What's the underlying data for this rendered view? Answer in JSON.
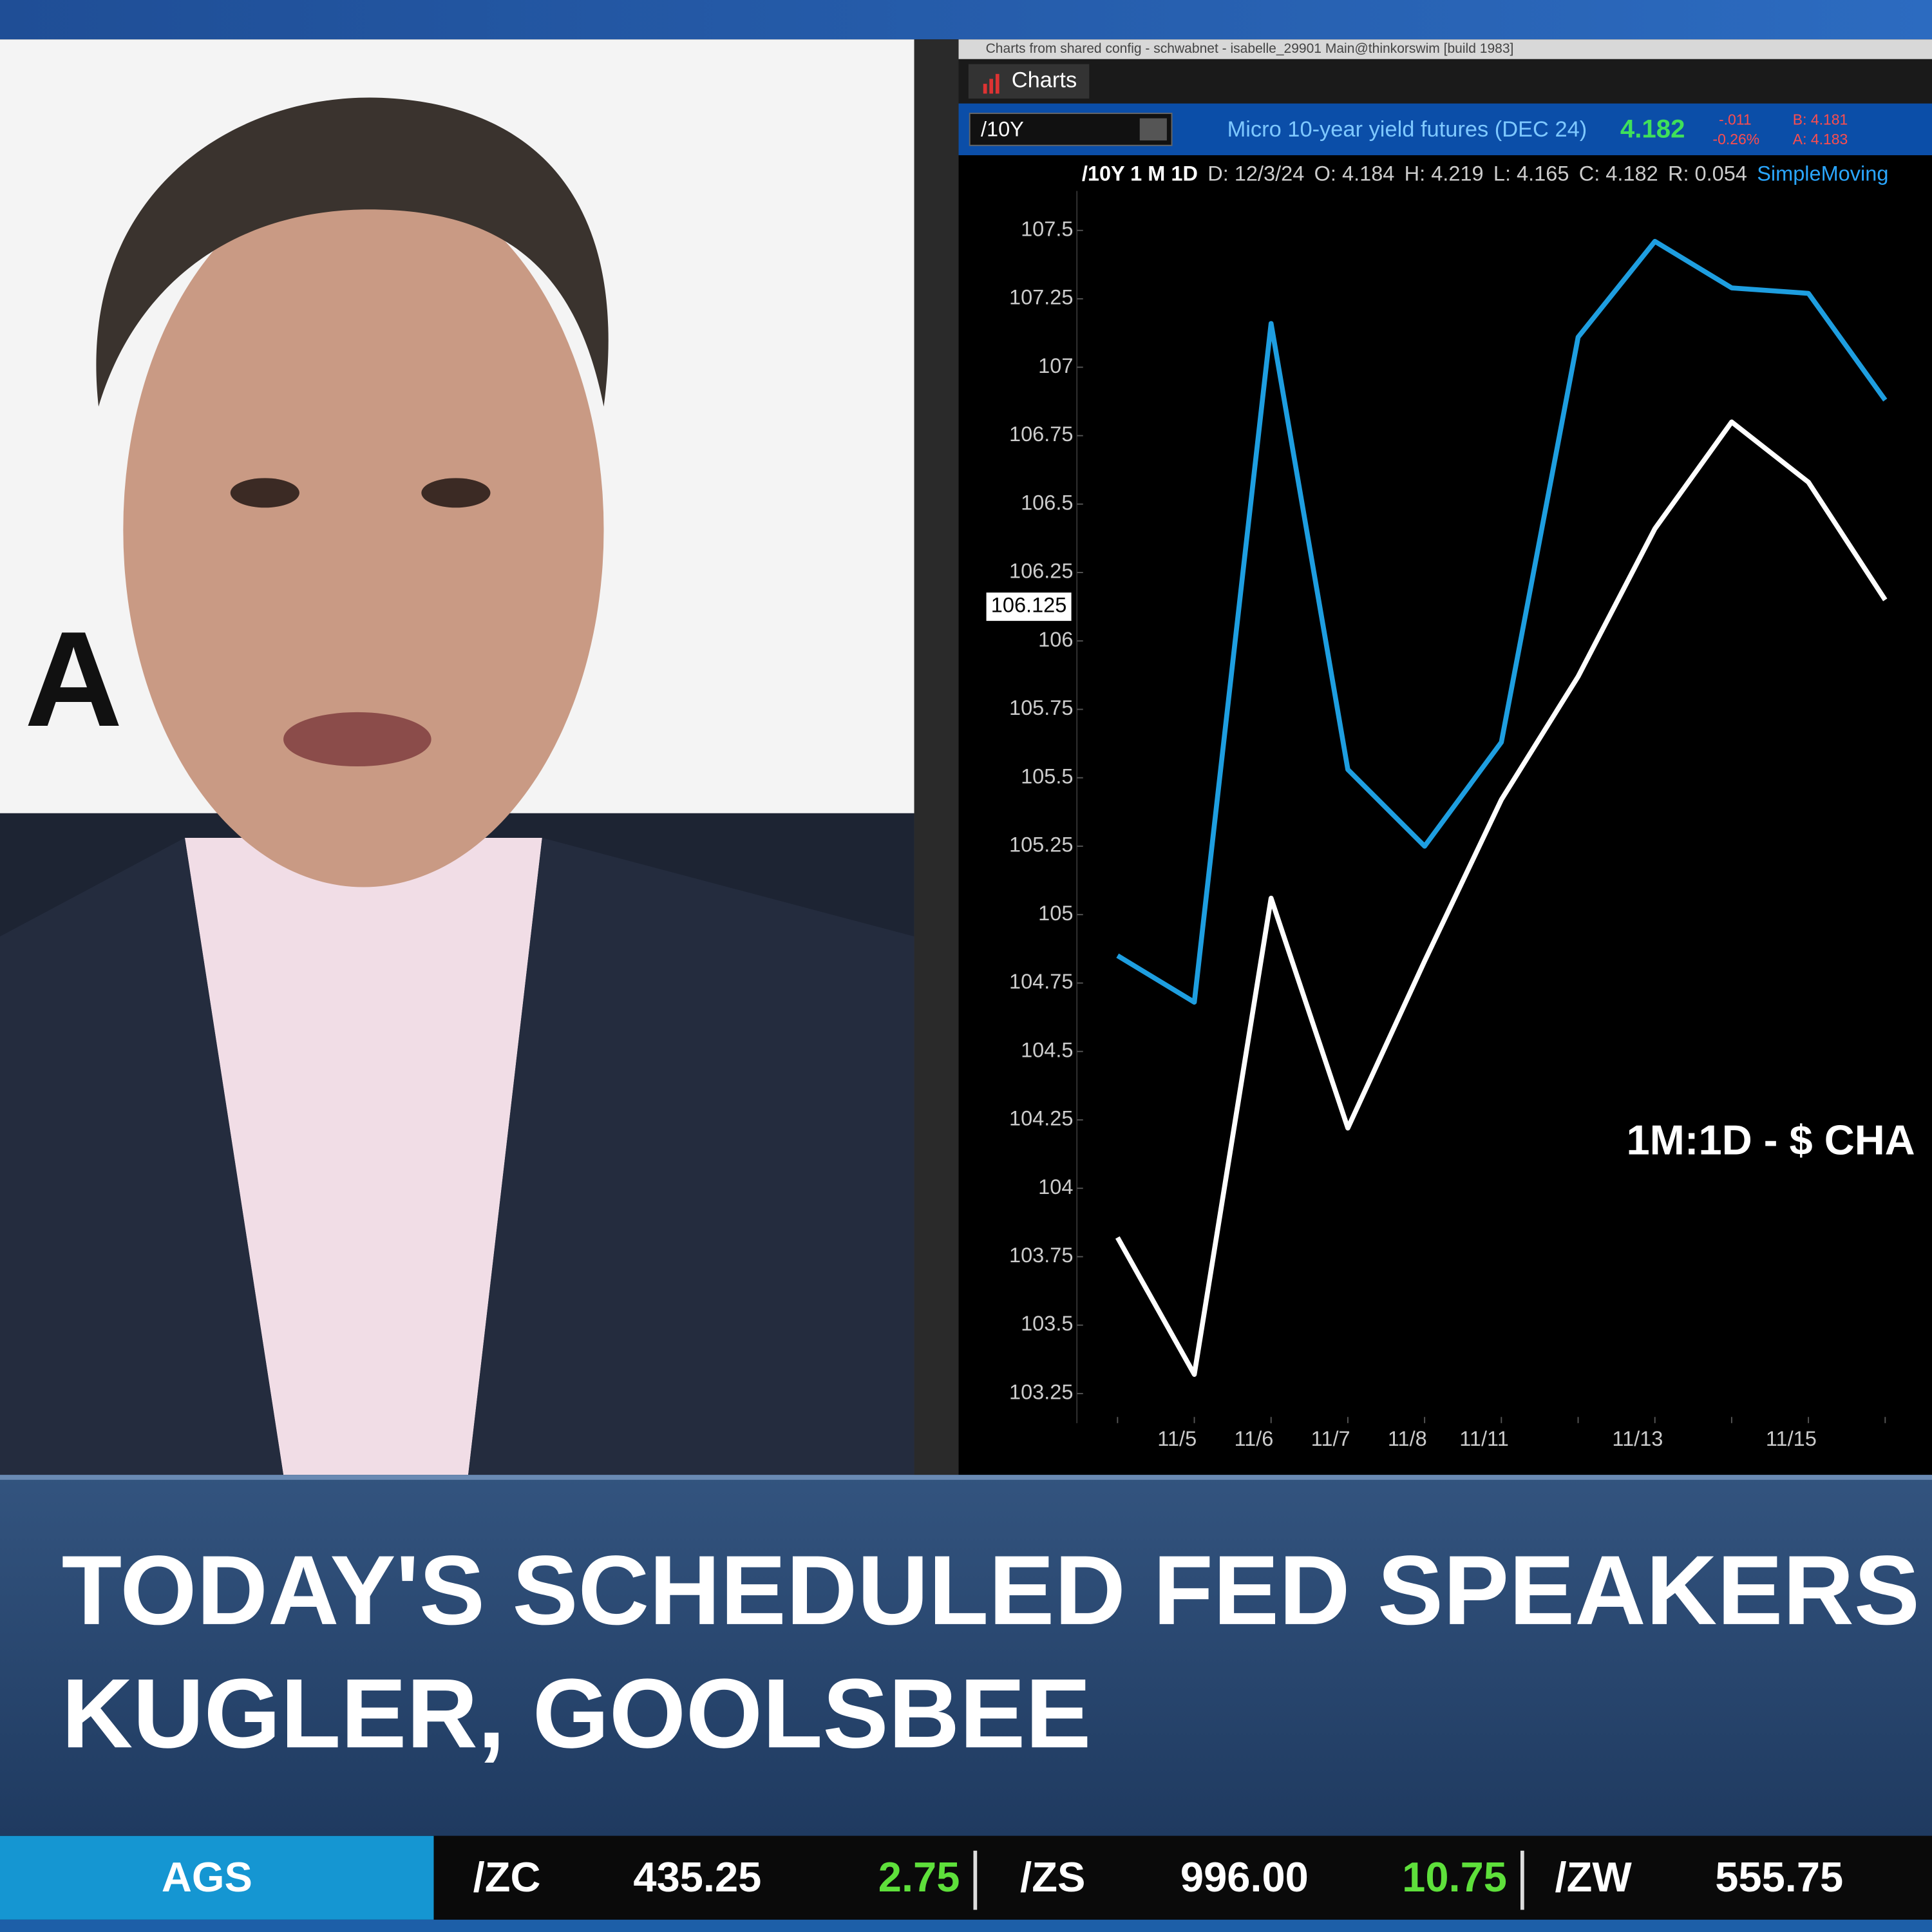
{
  "window": {
    "title": "Charts from shared config - schwabnet - isabelle_29901 Main@thinkorswim [build 1983]",
    "tab": "Charts",
    "symbol": "/10Y",
    "description": "Micro 10-year yield futures (DEC 24)",
    "last": "4.182",
    "change": "-.011",
    "change_pct": "-0.26%",
    "bid": "B: 4.181",
    "ask": "A: 4.183",
    "info": [
      "/10Y 1 M 1D",
      "D: 12/3/24",
      "O: 4.184",
      "H: 4.219",
      "L: 4.165",
      "C: 4.182",
      "R: 0.054",
      "SimpleMoving"
    ]
  },
  "chart_data": {
    "type": "line",
    "categories": [
      null,
      "11/5",
      "11/6",
      "11/7",
      "11/8",
      "11/11",
      null,
      "11/13",
      null,
      "11/15",
      null
    ],
    "series": [
      {
        "color": "#1e9ee0",
        "values": [
          104.85,
          104.68,
          107.16,
          105.53,
          105.25,
          105.63,
          107.11,
          107.46,
          107.29,
          107.27,
          106.88
        ]
      },
      {
        "color": "#ffffff",
        "values": [
          103.82,
          103.32,
          105.06,
          104.22,
          104.83,
          105.42,
          105.87,
          106.41,
          106.8,
          106.58,
          106.15
        ]
      }
    ],
    "ylim": [
      103.25,
      107.5
    ],
    "yticks": [
      103.25,
      103.5,
      103.75,
      104,
      104.25,
      104.5,
      104.75,
      105,
      105.25,
      105.5,
      105.75,
      106,
      106.25,
      106.5,
      106.75,
      107,
      107.25,
      107.5
    ],
    "price_label": 106.125,
    "annotation": "1M:1D - $ CHA",
    "grid": false
  },
  "banner": {
    "lines": [
      "TODAY'S SCHEDULED FED SPEAKERS",
      "KUGLER, GOOLSBEE"
    ]
  },
  "ticker": {
    "section": "AGS",
    "items": [
      {
        "symbol": "/ZC",
        "price": "435.25",
        "change": "2.75"
      },
      {
        "symbol": "/ZS",
        "price": "996.00",
        "change": "10.75"
      },
      {
        "symbol": "/ZW",
        "price": "555.75"
      }
    ]
  }
}
